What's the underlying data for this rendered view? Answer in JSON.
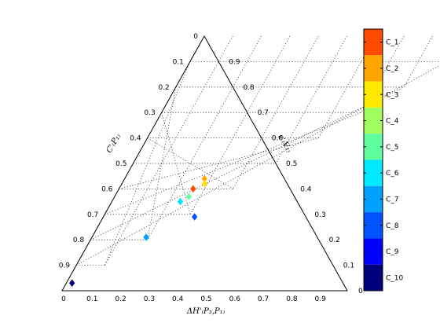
{
  "chart_data": {
    "type": "scatter",
    "subtype": "ternary",
    "grid": true,
    "ticks": [
      "0",
      "0.1",
      "0.2",
      "0.3",
      "0.4",
      "0.5",
      "0.6",
      "0.7",
      "0.8",
      "0.9"
    ],
    "bottom_right_label": "0",
    "axis_labels": {
      "bottom": "ΔH'₍P₃,P₁₎",
      "left": "C'₍P₁₎",
      "right": "ε'₍V₁₎"
    },
    "colorbar": {
      "labels": [
        "C_1",
        "C_2",
        "C_3",
        "C_4",
        "C_5",
        "C_6",
        "C_7",
        "C_8",
        "C_9",
        "C_10"
      ],
      "colors": [
        "#ff4a00",
        "#ffa500",
        "#ffe800",
        "#9fff5f",
        "#5fffa0",
        "#00e8ff",
        "#00a0ff",
        "#0052ff",
        "#0000ff",
        "#00007f"
      ]
    },
    "points": [
      {
        "class": "C_1",
        "x": 0.26,
        "left": 0.6
      },
      {
        "class": "C_2",
        "x": 0.28,
        "left": 0.56
      },
      {
        "class": "C_3",
        "x": 0.29,
        "left": 0.58
      },
      {
        "class": "C_5",
        "x": 0.26,
        "left": 0.63
      },
      {
        "class": "C_6",
        "x": 0.24,
        "left": 0.65
      },
      {
        "class": "C_7",
        "x": 0.19,
        "left": 0.79
      },
      {
        "class": "C_8",
        "x": 0.32,
        "left": 0.71
      },
      {
        "class": "C_10",
        "x": 0.02,
        "left": 0.97
      }
    ]
  }
}
